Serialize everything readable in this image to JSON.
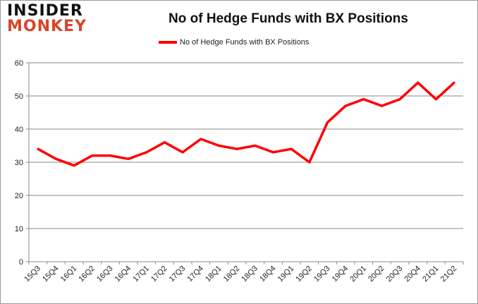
{
  "logo": {
    "line1": "INSIDER",
    "line2": "MONKEY"
  },
  "chart_data": {
    "type": "line",
    "title": "No of Hedge Funds with BX Positions",
    "xlabel": "",
    "ylabel": "",
    "ylim": [
      0,
      60
    ],
    "yticks": [
      0,
      10,
      20,
      30,
      40,
      50,
      60
    ],
    "grid": true,
    "legend_position": "top-center",
    "categories": [
      "15Q3",
      "15Q4",
      "16Q1",
      "16Q2",
      "16Q3",
      "16Q4",
      "17Q1",
      "17Q2",
      "17Q3",
      "17Q4",
      "18Q1",
      "18Q2",
      "18Q3",
      "18Q4",
      "19Q1",
      "19Q2",
      "19Q3",
      "19Q4",
      "20Q1",
      "20Q2",
      "20Q3",
      "20Q4",
      "21Q1",
      "21Q2"
    ],
    "series": [
      {
        "name": "No of Hedge Funds with BX Positions",
        "color": "#ff0000",
        "values": [
          34,
          31,
          29,
          32,
          32,
          31,
          33,
          36,
          33,
          37,
          35,
          34,
          35,
          33,
          34,
          30,
          42,
          47,
          49,
          47,
          49,
          54,
          49,
          54
        ]
      }
    ]
  }
}
